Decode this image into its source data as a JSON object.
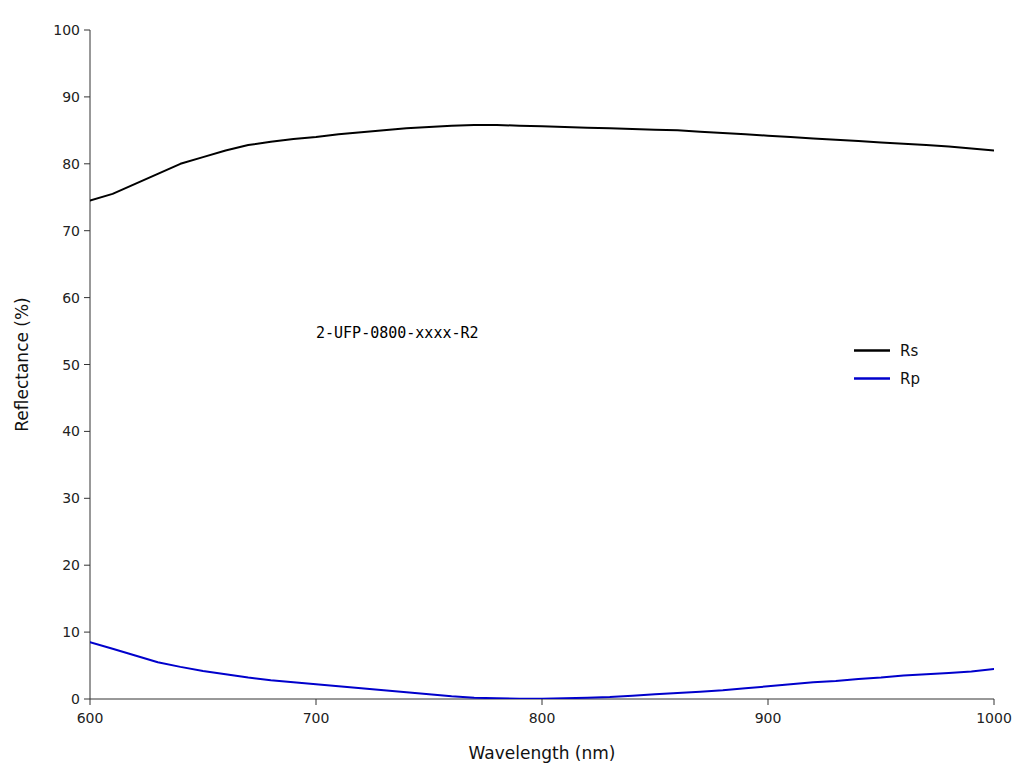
{
  "chart_data": {
    "type": "line",
    "x_label": "Wavelength (nm)",
    "y_label": "Reflectance (%)",
    "x": [
      600,
      610,
      620,
      630,
      640,
      650,
      660,
      670,
      680,
      690,
      700,
      710,
      720,
      730,
      740,
      750,
      760,
      770,
      780,
      790,
      800,
      810,
      820,
      830,
      840,
      850,
      860,
      870,
      880,
      890,
      900,
      910,
      920,
      930,
      940,
      950,
      960,
      970,
      980,
      990,
      1000
    ],
    "series": [
      {
        "name": "Rs",
        "color": "#000000",
        "values": [
          74.5,
          75.5,
          77.0,
          78.5,
          80.0,
          81.0,
          82.0,
          82.8,
          83.3,
          83.7,
          84.0,
          84.4,
          84.7,
          85.0,
          85.3,
          85.5,
          85.7,
          85.8,
          85.8,
          85.7,
          85.6,
          85.5,
          85.4,
          85.3,
          85.2,
          85.1,
          85.0,
          84.8,
          84.6,
          84.4,
          84.2,
          84.0,
          83.8,
          83.6,
          83.4,
          83.2,
          83.0,
          82.8,
          82.6,
          82.3,
          82.0
        ]
      },
      {
        "name": "Rp",
        "color": "#0000cc",
        "values": [
          8.5,
          7.5,
          6.5,
          5.5,
          4.8,
          4.2,
          3.7,
          3.2,
          2.8,
          2.5,
          2.2,
          1.9,
          1.6,
          1.3,
          1.0,
          0.7,
          0.4,
          0.2,
          0.1,
          0.05,
          0.05,
          0.1,
          0.2,
          0.3,
          0.5,
          0.7,
          0.9,
          1.1,
          1.3,
          1.6,
          1.9,
          2.2,
          2.5,
          2.7,
          3.0,
          3.2,
          3.5,
          3.7,
          3.9,
          4.1,
          4.5
        ]
      }
    ],
    "annotations": [
      {
        "text": "2-UFP-0800-xxxx-R2",
        "x": 700,
        "y": 54
      }
    ],
    "xlim": [
      600,
      1000
    ],
    "ylim": [
      0,
      100
    ],
    "xticks": [
      600,
      700,
      800,
      900,
      1000
    ],
    "yticks": [
      0,
      10,
      20,
      30,
      40,
      50,
      60,
      70,
      80,
      90,
      100
    ],
    "grid": false,
    "legend": "right"
  }
}
